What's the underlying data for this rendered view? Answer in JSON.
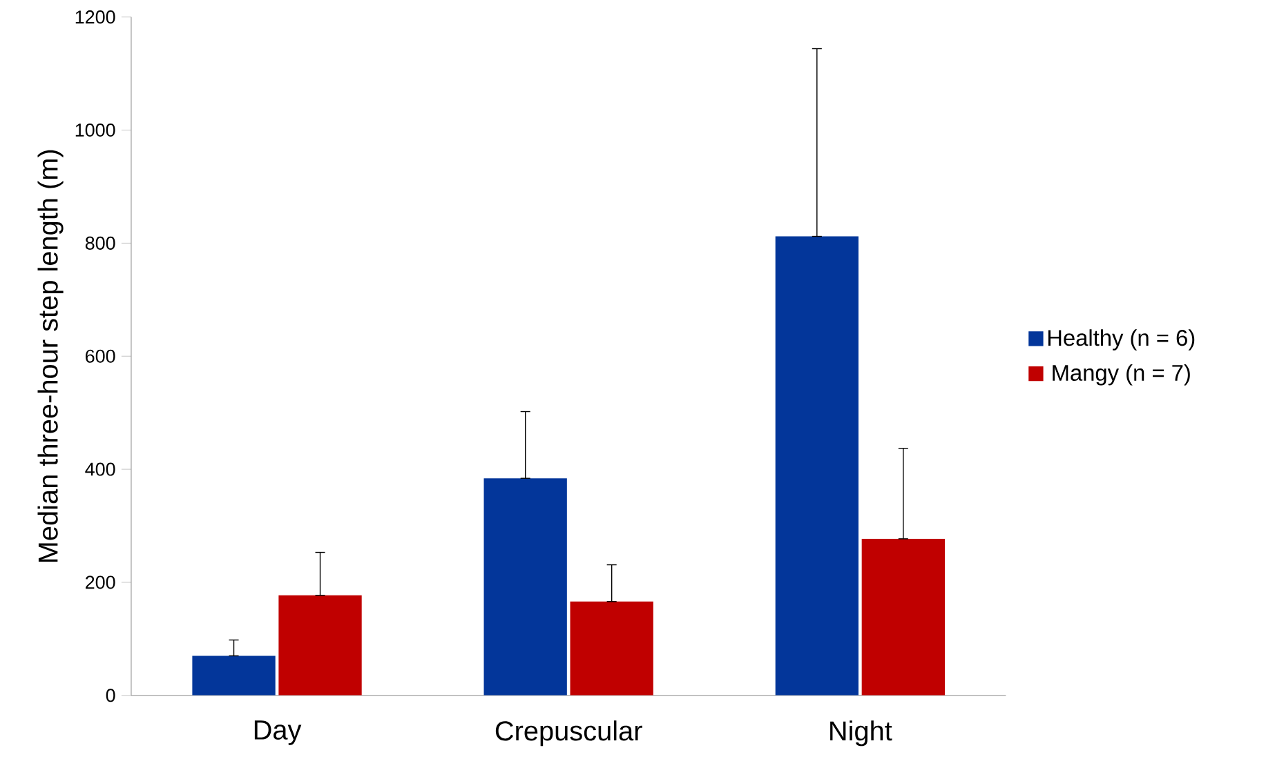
{
  "chart_data": {
    "type": "bar",
    "ylabel": "Median three-hour step length (m)",
    "categories": [
      "Day",
      "Crepuscular",
      "Night"
    ],
    "series": [
      {
        "name": "Healthy (n = 6)",
        "color": "#03369a",
        "values": [
          70,
          384,
          812
        ],
        "errors": [
          [
            70,
            98
          ],
          [
            384,
            502
          ],
          [
            812,
            1144
          ]
        ]
      },
      {
        "name": "Mangy (n = 7)",
        "color": "#c00000",
        "values": [
          177,
          166,
          277
        ],
        "errors": [
          [
            177,
            253
          ],
          [
            166,
            231
          ],
          [
            277,
            437
          ]
        ]
      }
    ],
    "ylim": [
      0,
      1200
    ],
    "yticks": [
      0,
      200,
      400,
      600,
      800,
      1000,
      1200
    ],
    "legend": "right",
    "grid": false
  }
}
